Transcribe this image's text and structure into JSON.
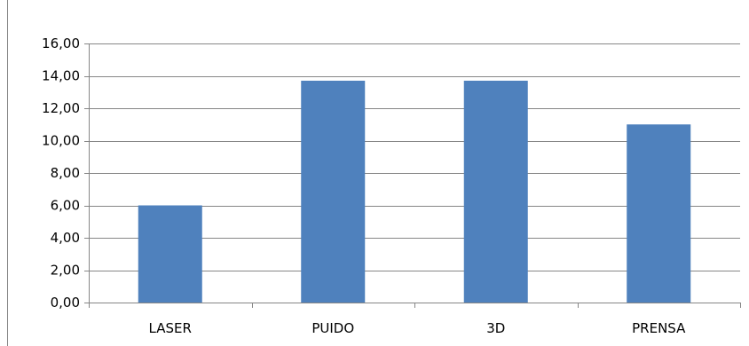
{
  "chart_data": {
    "type": "bar",
    "categories": [
      "LASER",
      "PUIDO",
      "3D",
      "PRENSA"
    ],
    "values": [
      6.0,
      13.7,
      13.7,
      11.0
    ],
    "ylim": [
      0,
      16
    ],
    "yticks": [
      "0,00",
      "2,00",
      "4,00",
      "6,00",
      "8,00",
      "10,00",
      "12,00",
      "14,00",
      "16,00"
    ],
    "ytick_values": [
      0,
      2,
      4,
      6,
      8,
      10,
      12,
      14,
      16
    ],
    "grid": true,
    "bar_color": "#4F81BD",
    "grid_color": "#868686",
    "axis_color": "#868686",
    "legend": "none"
  }
}
